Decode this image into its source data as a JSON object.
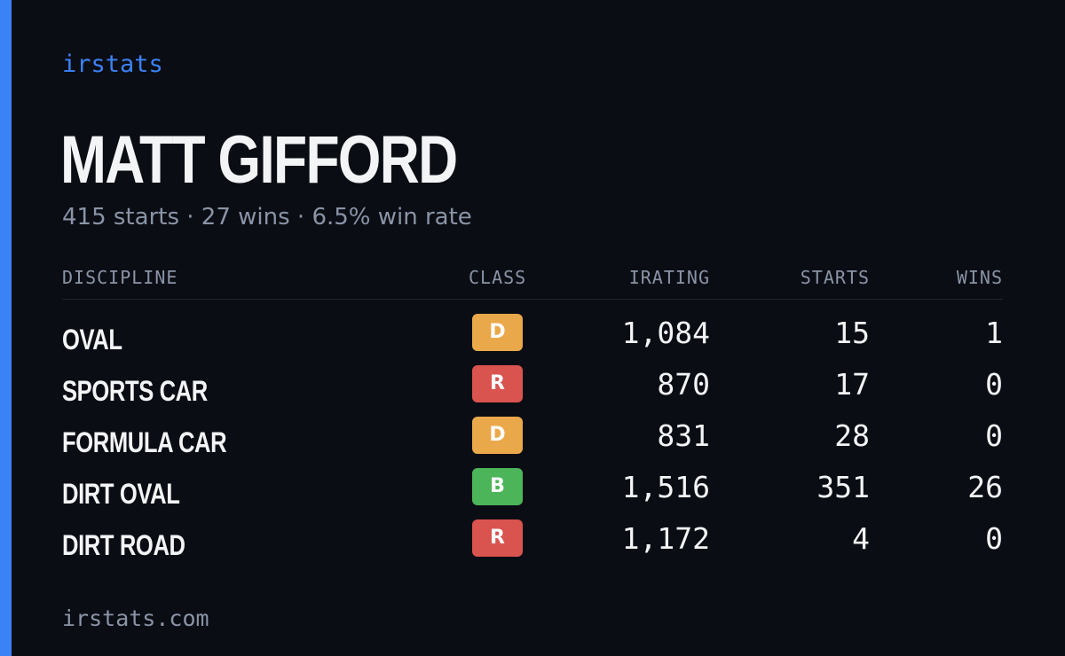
{
  "brand": "irstats",
  "driver": {
    "name": "MATT GIFFORD",
    "summary": "415 starts · 27 wins · 6.5% win rate"
  },
  "table": {
    "headers": {
      "discipline": "DISCIPLINE",
      "class": "CLASS",
      "irating": "IRATING",
      "starts": "STARTS",
      "wins": "WINS"
    },
    "rows": [
      {
        "discipline": "OVAL",
        "class": "D",
        "class_color": "#e9a94b",
        "irating": "1,084",
        "starts": "15",
        "wins": "1"
      },
      {
        "discipline": "SPORTS CAR",
        "class": "R",
        "class_color": "#d9534f",
        "irating": "870",
        "starts": "17",
        "wins": "0"
      },
      {
        "discipline": "FORMULA CAR",
        "class": "D",
        "class_color": "#e9a94b",
        "irating": "831",
        "starts": "28",
        "wins": "0"
      },
      {
        "discipline": "DIRT OVAL",
        "class": "B",
        "class_color": "#4cb55a",
        "irating": "1,516",
        "starts": "351",
        "wins": "26"
      },
      {
        "discipline": "DIRT ROAD",
        "class": "R",
        "class_color": "#d9534f",
        "irating": "1,172",
        "starts": "4",
        "wins": "0"
      }
    ]
  },
  "footer": "irstats.com",
  "colors": {
    "accent": "#3b82f6",
    "background": "#0b0d14",
    "muted": "#8a94a6",
    "text": "#f3f4f6"
  }
}
